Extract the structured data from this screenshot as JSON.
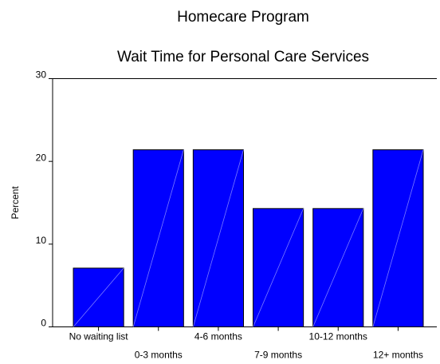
{
  "chart_data": {
    "type": "bar",
    "title": "Homecare Program",
    "subtitle": "Wait Time for Personal Care Services",
    "y_label": "Percent",
    "categories": [
      "No waiting list",
      "0-3 months",
      "4-6 months",
      "7-9 months",
      "10-12 months",
      "12+ months"
    ],
    "values": [
      7.1,
      21.4,
      21.4,
      14.3,
      14.3,
      21.4
    ],
    "color": "#0000ff",
    "ylim": [
      0,
      30
    ],
    "yticks": [
      0,
      10,
      20,
      30
    ],
    "grid": false
  }
}
